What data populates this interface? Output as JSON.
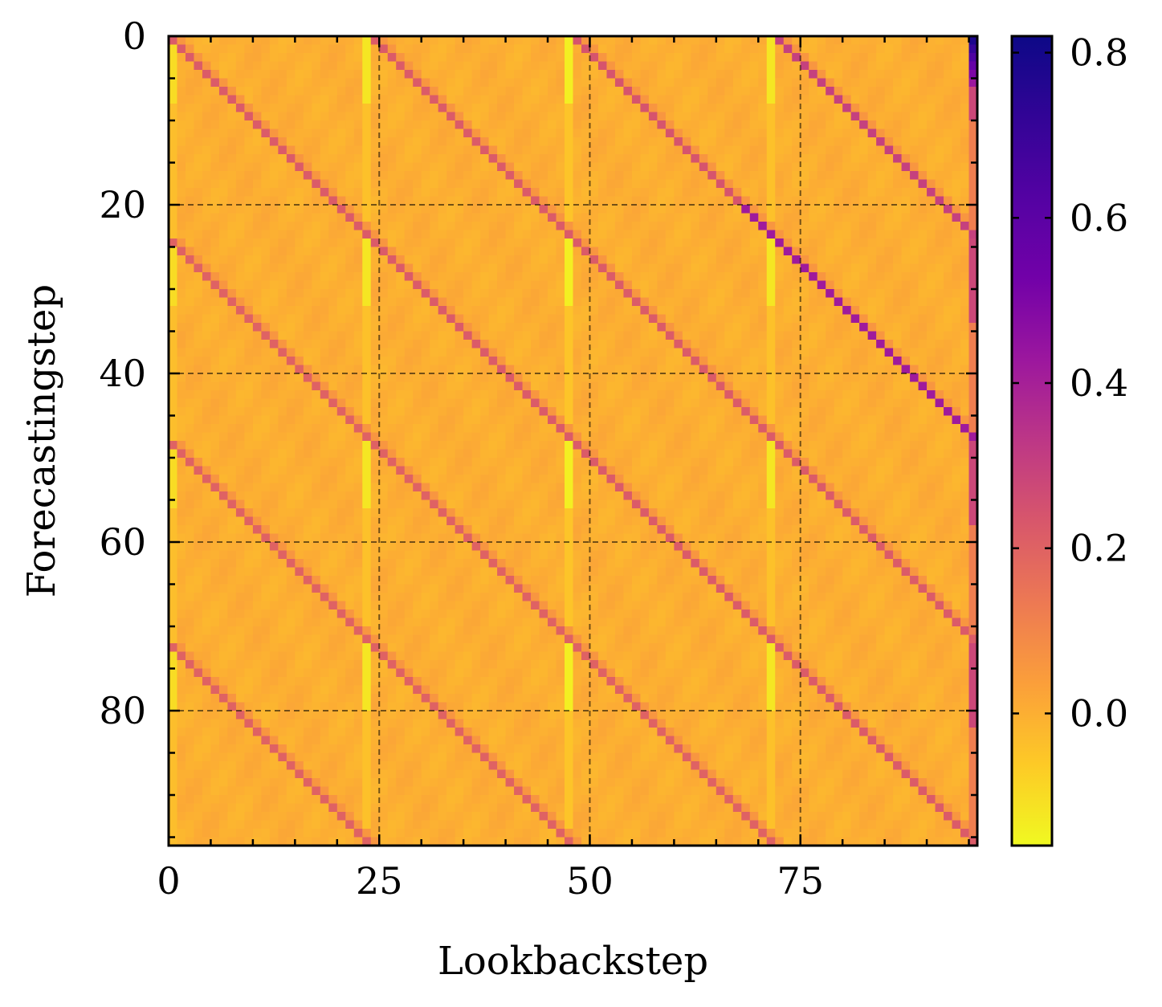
{
  "chart_data": {
    "type": "heatmap",
    "title": "",
    "xlabel": "Lookbackstep",
    "ylabel": "Forecastingstep",
    "rows": 96,
    "cols": 96,
    "xlim": [
      0,
      96
    ],
    "ylim": [
      96,
      0
    ],
    "x_ticks": [
      0,
      25,
      50,
      75
    ],
    "x_tick_labels": [
      "0",
      "25",
      "50",
      "75"
    ],
    "y_ticks": [
      0,
      20,
      40,
      60,
      80
    ],
    "y_tick_labels": [
      "0",
      "20",
      "40",
      "60",
      "80"
    ],
    "grid": true,
    "grid_style": "dashed",
    "colormap": "plasma_r",
    "colorbar": {
      "vmin": -0.16,
      "vmax": 0.82,
      "ticks": [
        0.0,
        0.2,
        0.4,
        0.6,
        0.8
      ],
      "tick_labels": [
        "0.0",
        "0.2",
        "0.4",
        "0.6",
        "0.8"
      ]
    },
    "background_value": 0.0,
    "diagonal_bands": [
      {
        "start_col": 0,
        "offset": 0,
        "value": 0.22
      },
      {
        "start_col": 24,
        "offset": 24,
        "value": 0.22
      },
      {
        "start_col": 48,
        "offset": 48,
        "value": 0.24
      },
      {
        "start_col": 72,
        "offset": 72,
        "value": 0.3
      },
      {
        "start_col": -24,
        "offset": -24,
        "value": 0.2
      },
      {
        "start_col": -48,
        "offset": -48,
        "value": 0.2
      },
      {
        "start_col": -72,
        "offset": -72,
        "value": 0.2
      }
    ],
    "strong_diagonal": {
      "offset": 48,
      "row_range": [
        20,
        50
      ],
      "value": 0.42
    },
    "bright_columns": [
      {
        "col": 23,
        "value": -0.12
      },
      {
        "col": 47,
        "value": -0.14
      },
      {
        "col": 71,
        "value": -0.12
      },
      {
        "col": 0,
        "value": -0.1
      }
    ],
    "corner_cell": {
      "row": 0,
      "col": 95,
      "value": 0.78
    },
    "right_edge_column": {
      "col": 95,
      "value": 0.28
    }
  },
  "colors": {
    "grid": "#000000",
    "axes": "#000000"
  }
}
